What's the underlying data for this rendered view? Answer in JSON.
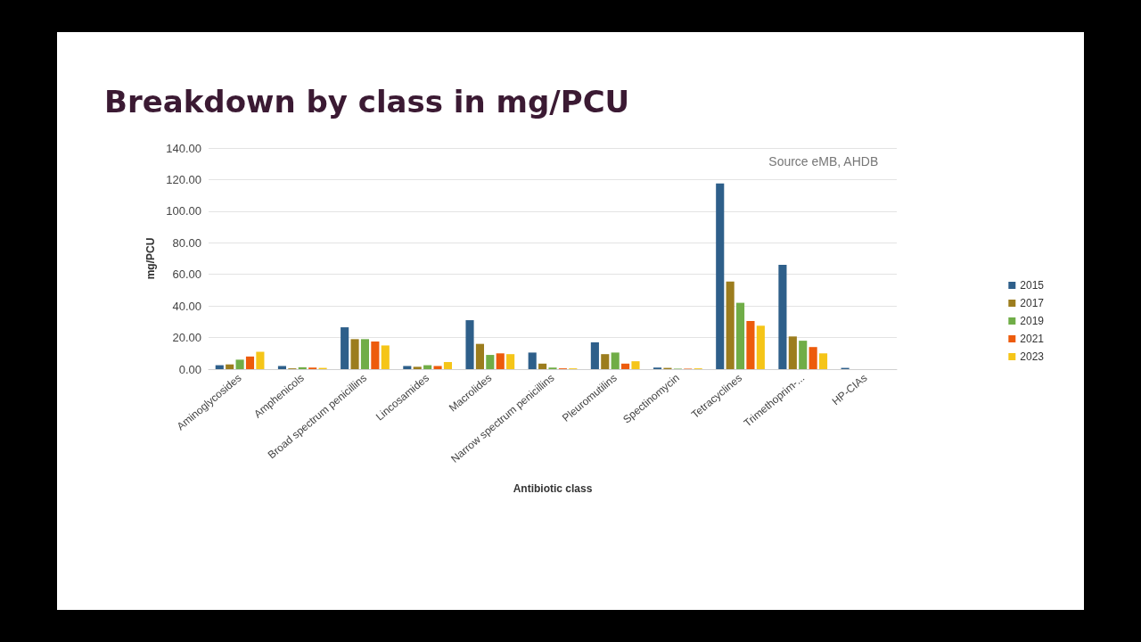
{
  "chart_data": {
    "type": "bar",
    "title": "Breakdown by class in mg/PCU",
    "xlabel": "Antibiotic class",
    "ylabel": "mg/PCU",
    "annotations": [
      "Source eMB, AHDB"
    ],
    "categories": [
      "Aminoglycosides",
      "Amphenicols",
      "Broad spectrum penicillins",
      "Lincosamides",
      "Macrolides",
      "Narrow spectrum penicillins",
      "Pleuromutilins",
      "Spectinomycin",
      "Tetracyclines",
      "Trimethoprim-...",
      "HP-CIAs"
    ],
    "series": [
      {
        "name": "2015",
        "color": "#2e5f8a",
        "values": [
          2.5,
          2,
          26.5,
          2,
          31,
          10.5,
          17,
          1,
          117.5,
          66,
          0.8
        ]
      },
      {
        "name": "2017",
        "color": "#9c7d1e",
        "values": [
          3,
          0.5,
          19,
          1.5,
          16,
          3.5,
          9.5,
          0.8,
          55.5,
          20.7,
          0
        ]
      },
      {
        "name": "2019",
        "color": "#70ad47",
        "values": [
          6,
          1.2,
          19,
          2.5,
          9,
          1,
          10.5,
          0.3,
          42,
          18,
          0
        ]
      },
      {
        "name": "2021",
        "color": "#ed5b0c",
        "values": [
          8,
          1,
          17.5,
          2,
          10,
          0.5,
          3.5,
          0.3,
          30.5,
          14,
          0
        ]
      },
      {
        "name": "2023",
        "color": "#f5c518",
        "values": [
          11,
          0.8,
          15,
          4.5,
          9.5,
          0.5,
          5,
          0.5,
          27.5,
          10,
          0
        ]
      }
    ],
    "ylim": [
      0,
      140
    ],
    "yticks": [
      {
        "value": 0,
        "label": "0.00"
      },
      {
        "value": 20,
        "label": "20.00"
      },
      {
        "value": 40,
        "label": "40.00"
      },
      {
        "value": 60,
        "label": "60.00"
      },
      {
        "value": 80,
        "label": "80.00"
      },
      {
        "value": 100,
        "label": "100.00"
      },
      {
        "value": 120,
        "label": "120.00"
      },
      {
        "value": 140,
        "label": "140.00"
      }
    ],
    "grid": "y",
    "legend": "right"
  }
}
